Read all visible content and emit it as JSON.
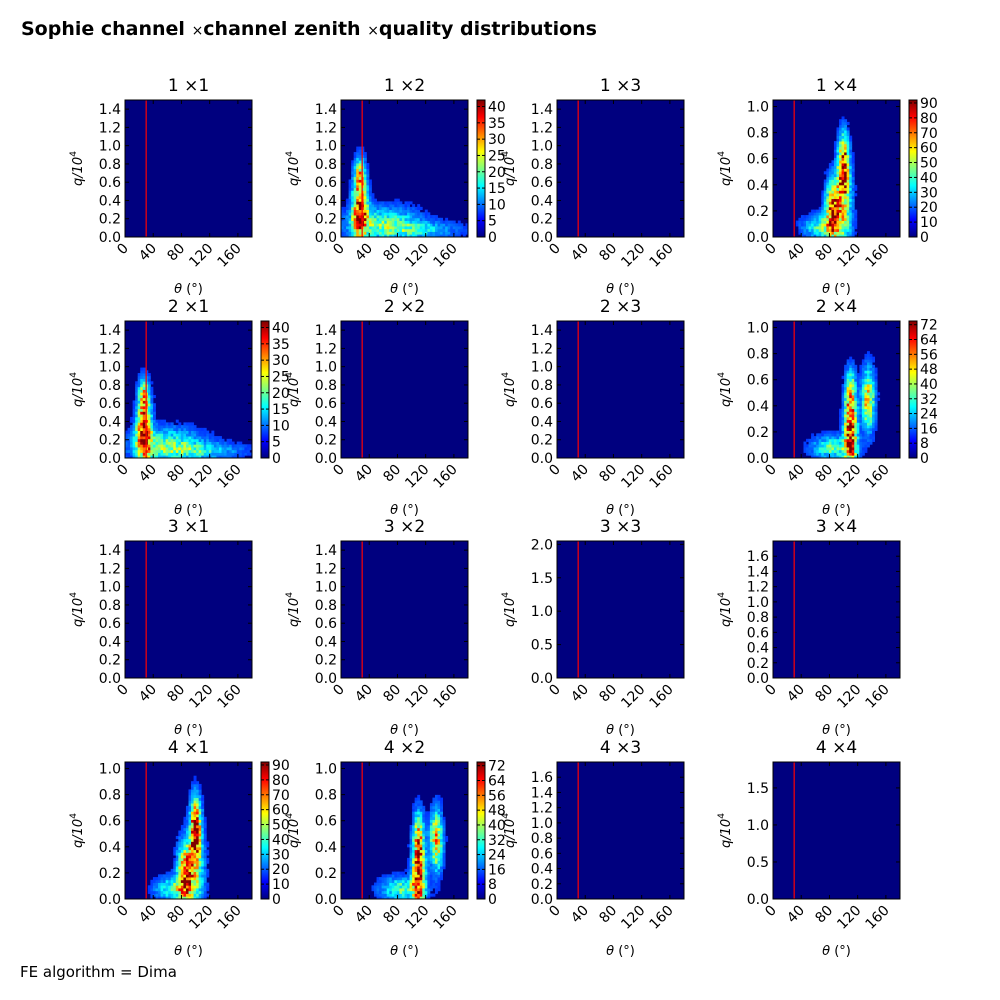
{
  "page": {
    "title_parts": [
      "Sophie channel ",
      "channel zenith ",
      "quality distributions"
    ],
    "title_sep": "×",
    "footer": "FE algorithm = Dima"
  },
  "colors": {
    "background_blue": "#00007f",
    "marker_line": "#ff0000",
    "jet": [
      "#00007f",
      "#0000ff",
      "#007fff",
      "#00ffff",
      "#7fff7f",
      "#ffff00",
      "#ff7f00",
      "#ff0000",
      "#7f0000"
    ]
  },
  "chart_data": [
    {
      "type": "heatmap",
      "title": "1  ×1",
      "xlabel": "θ (°)",
      "ylabel": "q/10^4",
      "xlim": [
        0,
        180
      ],
      "xticks": [
        0,
        40,
        80,
        120,
        160
      ],
      "ylim": [
        0,
        1.5
      ],
      "yticks": [
        "0.0",
        "0.2",
        "0.4",
        "0.6",
        "0.8",
        "1.0",
        "1.2",
        "1.4"
      ],
      "marker_x": 30,
      "colorbar": null,
      "hotspots": []
    },
    {
      "type": "heatmap",
      "title": "1  ×2",
      "xlabel": "θ (°)",
      "ylabel": "q/10^4",
      "xlim": [
        0,
        180
      ],
      "xticks": [
        0,
        40,
        80,
        120,
        160
      ],
      "ylim": [
        0,
        1.5
      ],
      "yticks": [
        "0.0",
        "0.2",
        "0.4",
        "0.6",
        "0.8",
        "1.0",
        "1.2",
        "1.4"
      ],
      "marker_x": 30,
      "colorbar": {
        "ticks": [
          "0",
          "5",
          "10",
          "15",
          "20",
          "25",
          "30",
          "35",
          "40"
        ],
        "max": 42
      },
      "hotspots": [
        {
          "x": 27,
          "y": 0.3,
          "sx": 7,
          "sy": 0.22,
          "a": 1.0
        },
        {
          "x": 27,
          "y": 0.7,
          "sx": 5,
          "sy": 0.12,
          "a": 0.5
        },
        {
          "x": 60,
          "y": 0.15,
          "sx": 35,
          "sy": 0.12,
          "a": 0.4
        },
        {
          "x": 110,
          "y": 0.08,
          "sx": 40,
          "sy": 0.06,
          "a": 0.25
        }
      ]
    },
    {
      "type": "heatmap",
      "title": "1  ×3",
      "xlabel": "θ (°)",
      "ylabel": "q/10^4",
      "xlim": [
        0,
        180
      ],
      "xticks": [
        0,
        40,
        80,
        120,
        160
      ],
      "ylim": [
        0,
        1.5
      ],
      "yticks": [
        "0.0",
        "0.2",
        "0.4",
        "0.6",
        "0.8",
        "1.0",
        "1.2",
        "1.4"
      ],
      "marker_x": 30,
      "colorbar": null,
      "hotspots": []
    },
    {
      "type": "heatmap",
      "title": "1  ×4",
      "xlabel": "θ (°)",
      "ylabel": "q/10^4",
      "xlim": [
        0,
        180
      ],
      "xticks": [
        0,
        40,
        80,
        120,
        160
      ],
      "ylim": [
        0,
        1.05
      ],
      "yticks": [
        "0.0",
        "0.2",
        "0.4",
        "0.6",
        "0.8",
        "1.0"
      ],
      "marker_x": 30,
      "colorbar": {
        "ticks": [
          "0",
          "10",
          "20",
          "30",
          "40",
          "50",
          "60",
          "70",
          "80",
          "90"
        ],
        "max": 92
      },
      "hotspots": [
        {
          "x": 100,
          "y": 0.55,
          "sx": 5,
          "sy": 0.15,
          "a": 1.0
        },
        {
          "x": 85,
          "y": 0.2,
          "sx": 7,
          "sy": 0.15,
          "a": 0.85
        },
        {
          "x": 70,
          "y": 0.08,
          "sx": 18,
          "sy": 0.06,
          "a": 0.4
        },
        {
          "x": 100,
          "y": 0.25,
          "sx": 8,
          "sy": 0.2,
          "a": 0.5
        }
      ]
    },
    {
      "type": "heatmap",
      "title": "2  ×1",
      "xlabel": "θ (°)",
      "ylabel": "q/10^4",
      "xlim": [
        0,
        180
      ],
      "xticks": [
        0,
        40,
        80,
        120,
        160
      ],
      "ylim": [
        0,
        1.5
      ],
      "yticks": [
        "0.0",
        "0.2",
        "0.4",
        "0.6",
        "0.8",
        "1.0",
        "1.2",
        "1.4"
      ],
      "marker_x": 30,
      "colorbar": {
        "ticks": [
          "0",
          "5",
          "10",
          "15",
          "20",
          "25",
          "30",
          "35",
          "40"
        ],
        "max": 42
      },
      "hotspots": [
        {
          "x": 27,
          "y": 0.3,
          "sx": 7,
          "sy": 0.22,
          "a": 1.0
        },
        {
          "x": 27,
          "y": 0.7,
          "sx": 5,
          "sy": 0.12,
          "a": 0.5
        },
        {
          "x": 60,
          "y": 0.15,
          "sx": 35,
          "sy": 0.12,
          "a": 0.4
        },
        {
          "x": 110,
          "y": 0.08,
          "sx": 40,
          "sy": 0.06,
          "a": 0.25
        }
      ]
    },
    {
      "type": "heatmap",
      "title": "2  ×2",
      "xlabel": "θ (°)",
      "ylabel": "q/10^4",
      "xlim": [
        0,
        180
      ],
      "xticks": [
        0,
        40,
        80,
        120,
        160
      ],
      "ylim": [
        0,
        1.5
      ],
      "yticks": [
        "0.0",
        "0.2",
        "0.4",
        "0.6",
        "0.8",
        "1.0",
        "1.2",
        "1.4"
      ],
      "marker_x": 30,
      "colorbar": null,
      "hotspots": []
    },
    {
      "type": "heatmap",
      "title": "2  ×3",
      "xlabel": "θ (°)",
      "ylabel": "q/10^4",
      "xlim": [
        0,
        180
      ],
      "xticks": [
        0,
        40,
        80,
        120,
        160
      ],
      "ylim": [
        0,
        1.5
      ],
      "yticks": [
        "0.0",
        "0.2",
        "0.4",
        "0.6",
        "0.8",
        "1.0",
        "1.2",
        "1.4"
      ],
      "marker_x": 30,
      "colorbar": null,
      "hotspots": []
    },
    {
      "type": "heatmap",
      "title": "2  ×4",
      "xlabel": "θ (°)",
      "ylabel": "q/10^4",
      "xlim": [
        0,
        180
      ],
      "xticks": [
        0,
        40,
        80,
        120,
        160
      ],
      "ylim": [
        0,
        1.05
      ],
      "yticks": [
        "0.0",
        "0.2",
        "0.4",
        "0.6",
        "0.8",
        "1.0"
      ],
      "marker_x": 30,
      "colorbar": {
        "ticks": [
          "0",
          "8",
          "16",
          "24",
          "32",
          "40",
          "48",
          "56",
          "64",
          "72"
        ],
        "max": 74
      },
      "hotspots": [
        {
          "x": 110,
          "y": 0.2,
          "sx": 6,
          "sy": 0.2,
          "a": 1.0
        },
        {
          "x": 135,
          "y": 0.45,
          "sx": 6,
          "sy": 0.15,
          "a": 0.7
        },
        {
          "x": 85,
          "y": 0.08,
          "sx": 20,
          "sy": 0.06,
          "a": 0.4
        },
        {
          "x": 110,
          "y": 0.5,
          "sx": 5,
          "sy": 0.12,
          "a": 0.4
        }
      ]
    },
    {
      "type": "heatmap",
      "title": "3  ×1",
      "xlabel": "θ (°)",
      "ylabel": "q/10^4",
      "xlim": [
        0,
        180
      ],
      "xticks": [
        0,
        40,
        80,
        120,
        160
      ],
      "ylim": [
        0,
        1.5
      ],
      "yticks": [
        "0.0",
        "0.2",
        "0.4",
        "0.6",
        "0.8",
        "1.0",
        "1.2",
        "1.4"
      ],
      "marker_x": 30,
      "colorbar": null,
      "hotspots": []
    },
    {
      "type": "heatmap",
      "title": "3  ×2",
      "xlabel": "θ (°)",
      "ylabel": "q/10^4",
      "xlim": [
        0,
        180
      ],
      "xticks": [
        0,
        40,
        80,
        120,
        160
      ],
      "ylim": [
        0,
        1.5
      ],
      "yticks": [
        "0.0",
        "0.2",
        "0.4",
        "0.6",
        "0.8",
        "1.0",
        "1.2",
        "1.4"
      ],
      "marker_x": 30,
      "colorbar": null,
      "hotspots": []
    },
    {
      "type": "heatmap",
      "title": "3  ×3",
      "xlabel": "θ (°)",
      "ylabel": "q/10^4",
      "xlim": [
        0,
        180
      ],
      "xticks": [
        0,
        40,
        80,
        120,
        160
      ],
      "ylim": [
        0,
        2.05
      ],
      "yticks": [
        "0.0",
        "0.5",
        "1.0",
        "1.5",
        "2.0"
      ],
      "marker_x": 30,
      "colorbar": null,
      "hotspots": []
    },
    {
      "type": "heatmap",
      "title": "3  ×4",
      "xlabel": "θ (°)",
      "ylabel": "q/10^4",
      "xlim": [
        0,
        180
      ],
      "xticks": [
        0,
        40,
        80,
        120,
        160
      ],
      "ylim": [
        0,
        1.8
      ],
      "yticks": [
        "0.0",
        "0.2",
        "0.4",
        "0.6",
        "0.8",
        "1.0",
        "1.2",
        "1.4",
        "1.6"
      ],
      "marker_x": 30,
      "colorbar": null,
      "hotspots": []
    },
    {
      "type": "heatmap",
      "title": "4  ×1",
      "xlabel": "θ (°)",
      "ylabel": "q/10^4",
      "xlim": [
        0,
        180
      ],
      "xticks": [
        0,
        40,
        80,
        120,
        160
      ],
      "ylim": [
        0,
        1.05
      ],
      "yticks": [
        "0.0",
        "0.2",
        "0.4",
        "0.6",
        "0.8",
        "1.0"
      ],
      "marker_x": 30,
      "colorbar": {
        "ticks": [
          "0",
          "10",
          "20",
          "30",
          "40",
          "50",
          "60",
          "70",
          "80",
          "90"
        ],
        "max": 92
      },
      "hotspots": [
        {
          "x": 100,
          "y": 0.55,
          "sx": 5,
          "sy": 0.15,
          "a": 1.0
        },
        {
          "x": 85,
          "y": 0.2,
          "sx": 7,
          "sy": 0.15,
          "a": 0.85
        },
        {
          "x": 70,
          "y": 0.08,
          "sx": 18,
          "sy": 0.06,
          "a": 0.4
        },
        {
          "x": 100,
          "y": 0.25,
          "sx": 8,
          "sy": 0.2,
          "a": 0.5
        }
      ]
    },
    {
      "type": "heatmap",
      "title": "4  ×2",
      "xlabel": "θ (°)",
      "ylabel": "q/10^4",
      "xlim": [
        0,
        180
      ],
      "xticks": [
        0,
        40,
        80,
        120,
        160
      ],
      "ylim": [
        0,
        1.05
      ],
      "yticks": [
        "0.0",
        "0.2",
        "0.4",
        "0.6",
        "0.8",
        "1.0"
      ],
      "marker_x": 30,
      "colorbar": {
        "ticks": [
          "0",
          "8",
          "16",
          "24",
          "32",
          "40",
          "48",
          "56",
          "64",
          "72"
        ],
        "max": 74
      },
      "hotspots": [
        {
          "x": 110,
          "y": 0.2,
          "sx": 6,
          "sy": 0.2,
          "a": 1.0
        },
        {
          "x": 135,
          "y": 0.45,
          "sx": 6,
          "sy": 0.15,
          "a": 0.7
        },
        {
          "x": 85,
          "y": 0.08,
          "sx": 20,
          "sy": 0.06,
          "a": 0.4
        },
        {
          "x": 110,
          "y": 0.5,
          "sx": 5,
          "sy": 0.12,
          "a": 0.4
        }
      ]
    },
    {
      "type": "heatmap",
      "title": "4  ×3",
      "xlabel": "θ (°)",
      "ylabel": "q/10^4",
      "xlim": [
        0,
        180
      ],
      "xticks": [
        0,
        40,
        80,
        120,
        160
      ],
      "ylim": [
        0,
        1.8
      ],
      "yticks": [
        "0.0",
        "0.2",
        "0.4",
        "0.6",
        "0.8",
        "1.0",
        "1.2",
        "1.4",
        "1.6"
      ],
      "marker_x": 30,
      "colorbar": null,
      "hotspots": []
    },
    {
      "type": "heatmap",
      "title": "4  ×4",
      "xlabel": "θ (°)",
      "ylabel": "q/10^4",
      "xlim": [
        0,
        180
      ],
      "xticks": [
        0,
        40,
        80,
        120,
        160
      ],
      "ylim": [
        0,
        1.85
      ],
      "yticks": [
        "0.0",
        "0.5",
        "1.0",
        "1.5"
      ],
      "marker_x": 30,
      "colorbar": null,
      "hotspots": []
    }
  ]
}
